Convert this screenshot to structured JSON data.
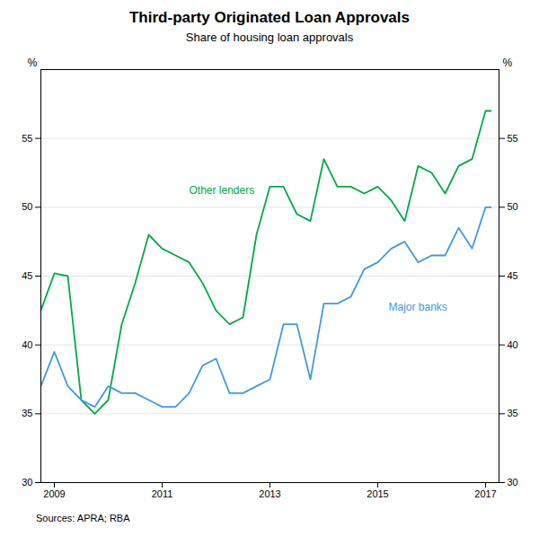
{
  "chart_data": {
    "type": "line",
    "title": "Third-party Originated Loan Approvals",
    "subtitle": "Share of housing loan approvals",
    "source": "Sources: APRA; RBA",
    "ylabel": "%",
    "y2label": "%",
    "x": [
      2008.75,
      2009.0,
      2009.25,
      2009.5,
      2009.75,
      2010.0,
      2010.25,
      2010.5,
      2010.75,
      2011.0,
      2011.25,
      2011.5,
      2011.75,
      2012.0,
      2012.25,
      2012.5,
      2012.75,
      2013.0,
      2013.25,
      2013.5,
      2013.75,
      2014.0,
      2014.25,
      2014.5,
      2014.75,
      2015.0,
      2015.25,
      2015.5,
      2015.75,
      2016.0,
      2016.25,
      2016.5,
      2016.75,
      2017.0,
      2017.1
    ],
    "series": [
      {
        "name": "Other lenders",
        "color": "#00AA44",
        "values": [
          42.5,
          45.2,
          45.0,
          36.0,
          35.0,
          36.0,
          41.5,
          44.5,
          48.0,
          47.0,
          46.5,
          46.0,
          44.5,
          42.5,
          41.5,
          42.0,
          48.0,
          51.5,
          51.5,
          49.5,
          49.0,
          53.5,
          51.5,
          51.5,
          51.0,
          51.5,
          50.5,
          49.0,
          53.0,
          52.5,
          51.0,
          53.0,
          53.5,
          57.0,
          57.0
        ]
      },
      {
        "name": "Major banks",
        "color": "#4499DD",
        "values": [
          37.0,
          39.5,
          37.0,
          36.0,
          35.5,
          37.0,
          36.5,
          36.5,
          36.0,
          35.5,
          35.5,
          36.5,
          38.5,
          39.0,
          36.5,
          36.5,
          37.0,
          37.5,
          41.5,
          41.5,
          37.5,
          43.0,
          43.0,
          43.5,
          45.5,
          46.0,
          47.0,
          47.5,
          46.0,
          46.5,
          46.5,
          48.5,
          47.0,
          50.0,
          50.0
        ]
      }
    ],
    "annotations": [
      {
        "text": "Other lenders",
        "x": 2011.5,
        "y": 51.0,
        "color": "#00AA44"
      },
      {
        "text": "Major banks",
        "x": 2015.2,
        "y": 42.5,
        "color": "#4499DD"
      }
    ],
    "xlim": [
      2008.75,
      2017.25
    ],
    "xticks": [
      2009,
      2011,
      2013,
      2015,
      2017
    ],
    "ylim": [
      30,
      60
    ],
    "yticks": [
      30,
      35,
      40,
      45,
      50,
      55
    ],
    "y2lim": [
      30,
      60
    ],
    "y2ticks": [
      30,
      35,
      40,
      45,
      50,
      55
    ],
    "grid": true
  }
}
